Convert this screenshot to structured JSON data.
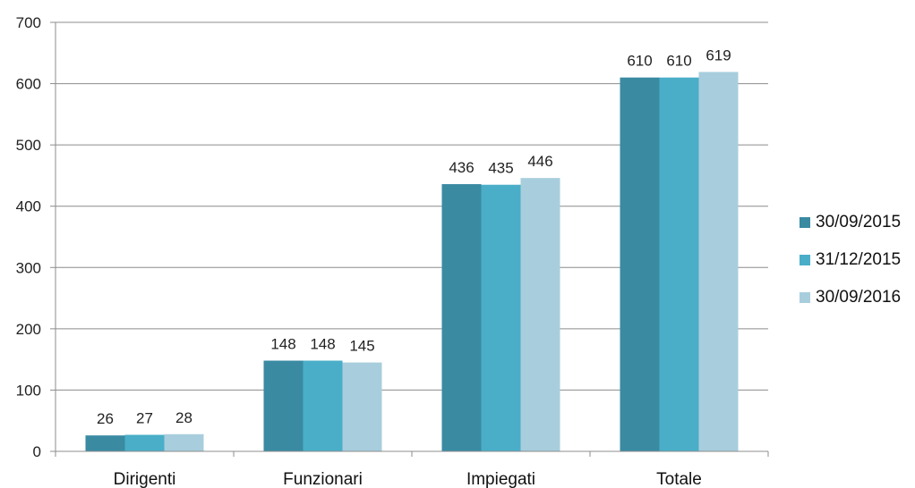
{
  "chart_data": {
    "type": "bar",
    "categories": [
      "Dirigenti",
      "Funzionari",
      "Impiegati",
      "Totale"
    ],
    "series": [
      {
        "name": "30/09/2015",
        "color": "#3a8aa2",
        "values": [
          26,
          148,
          436,
          610
        ]
      },
      {
        "name": "31/12/2015",
        "color": "#4aaec8",
        "values": [
          27,
          148,
          435,
          610
        ]
      },
      {
        "name": "30/09/2016",
        "color": "#a8cedd",
        "values": [
          28,
          145,
          446,
          619
        ]
      }
    ],
    "ylim": [
      0,
      700
    ],
    "yticks": [
      0,
      100,
      200,
      300,
      400,
      500,
      600,
      700
    ],
    "grid": true,
    "legend_position": "right",
    "xlabel": "",
    "ylabel": "",
    "title": ""
  }
}
